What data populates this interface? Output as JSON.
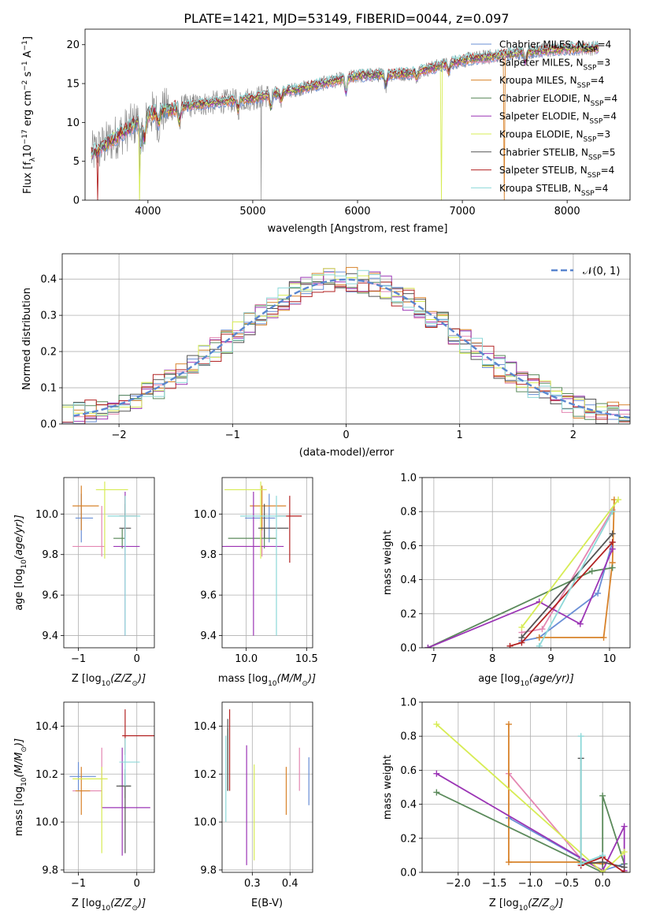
{
  "figure": {
    "title": "PLATE=1421, MJD=53149, FIBERID=0044, z=0.097"
  },
  "chart_data": [
    {
      "id": "spectrum",
      "type": "line",
      "xlabel": "wavelength [Angstrom, rest frame]",
      "ylabel_parts": [
        "Flux [f",
        "λ",
        "10",
        "−17",
        " erg cm",
        "−2",
        " s",
        "−1",
        " A",
        "−1",
        "]"
      ],
      "xlim": [
        3400,
        8600
      ],
      "ylim": [
        0,
        22
      ],
      "xticks": [
        4000,
        5000,
        6000,
        7000,
        8000
      ],
      "yticks": [
        0,
        5,
        10,
        15,
        20
      ],
      "grid": false,
      "legend_position": "top-right",
      "continuum": {
        "x": [
          3450,
          3700,
          4000,
          4300,
          4600,
          5000,
          5500,
          6000,
          6500,
          7000,
          7500,
          8000,
          8300
        ],
        "y": [
          5.8,
          8.2,
          11.0,
          12.0,
          12.5,
          13.1,
          14.5,
          16.0,
          16.3,
          18.0,
          18.9,
          19.5,
          19.6
        ]
      },
      "absorption_features": [
        {
          "x": 3933,
          "depth": 3.5
        },
        {
          "x": 3968,
          "depth": 3.0
        },
        {
          "x": 4101,
          "depth": 1.5
        },
        {
          "x": 4300,
          "depth": 2.0
        },
        {
          "x": 4861,
          "depth": 1.2
        },
        {
          "x": 5175,
          "depth": 1.8
        },
        {
          "x": 5270,
          "depth": 1.0
        },
        {
          "x": 5890,
          "depth": 1.8
        },
        {
          "x": 6270,
          "depth": 1.5
        },
        {
          "x": 6563,
          "depth": 0.6
        },
        {
          "x": 6870,
          "depth": 1.0
        },
        {
          "x": 7600,
          "depth": 1.2
        }
      ],
      "series": [
        {
          "name_pre": "Chabrier MILES, N",
          "name_sub": "SSP",
          "name_post": "=4",
          "color": "#6a8fd6"
        },
        {
          "name_pre": "Salpeter MILES, N",
          "name_sub": "SSP",
          "name_post": "=3",
          "color": "#e487b2"
        },
        {
          "name_pre": "Kroupa MILES, N",
          "name_sub": "SSP",
          "name_post": "=4",
          "color": "#d8822a"
        },
        {
          "name_pre": "Chabrier ELODIE, N",
          "name_sub": "SSP",
          "name_post": "=4",
          "color": "#5b8a5b"
        },
        {
          "name_pre": "Salpeter ELODIE, N",
          "name_sub": "SSP",
          "name_post": "=4",
          "color": "#9b35b5"
        },
        {
          "name_pre": "Kroupa ELODIE, N",
          "name_sub": "SSP",
          "name_post": "=3",
          "color": "#d7ec55"
        },
        {
          "name_pre": "Chabrier STELIB, N",
          "name_sub": "SSP",
          "name_post": "=5",
          "color": "#555555"
        },
        {
          "name_pre": "Salpeter STELIB, N",
          "name_sub": "SSP",
          "name_post": "=4",
          "color": "#b22222"
        },
        {
          "name_pre": "Kroupa STELIB, N",
          "name_sub": "SSP",
          "name_post": "=4",
          "color": "#8dd8d8"
        }
      ]
    },
    {
      "id": "residuals",
      "type": "histogram",
      "xlabel": "(data-model)/error",
      "ylabel": "Normed distribution",
      "xlim": [
        -2.5,
        2.5
      ],
      "ylim": [
        0,
        0.47
      ],
      "xticks": [
        -2,
        -1,
        0,
        1,
        2
      ],
      "yticks": [
        0.0,
        0.1,
        0.2,
        0.3,
        0.4
      ],
      "grid": true,
      "legend_position": "top-right",
      "bin_width": 0.1,
      "reference_curve": {
        "name": "𝒩(0, 1)",
        "color": "#5a86cf",
        "dashed": true,
        "mean": 0,
        "sigma": 1
      }
    },
    {
      "id": "Z-age",
      "type": "scatter-errorbar",
      "xlabel_parts": [
        "Z [log",
        "10",
        "(Z/Z",
        "⊙",
        ")]"
      ],
      "ylabel_parts": [
        "age  [log",
        "10",
        "(age/yr)]"
      ],
      "xlim": [
        -1.25,
        0.3
      ],
      "ylim": [
        9.34,
        10.18
      ],
      "xticks": [
        -1,
        0
      ],
      "yticks": [
        9.4,
        9.6,
        9.8,
        10.0
      ],
      "grid": true,
      "points": [
        {
          "x": -0.95,
          "y": 9.98,
          "xerr": [
            0.1,
            0.2
          ],
          "yerr": [
            0.12,
            0.12
          ],
          "s": 0
        },
        {
          "x": -0.6,
          "y": 9.84,
          "xerr": [
            0.5,
            0.05
          ],
          "yerr": [
            0.05,
            0.2
          ],
          "s": 1
        },
        {
          "x": -0.95,
          "y": 10.04,
          "xerr": [
            0.15,
            0.3
          ],
          "yerr": [
            0.12,
            0.1
          ],
          "s": 2
        },
        {
          "x": -0.25,
          "y": 9.88,
          "xerr": [
            0.15,
            0.05
          ],
          "yerr": [
            0.05,
            0.05
          ],
          "s": 3
        },
        {
          "x": -0.2,
          "y": 9.84,
          "xerr": [
            0.2,
            0.25
          ],
          "yerr": [
            0.44,
            0.27
          ],
          "s": 4
        },
        {
          "x": -0.55,
          "y": 10.12,
          "xerr": [
            0.15,
            0.4
          ],
          "yerr": [
            0.34,
            0.04
          ],
          "s": 5
        },
        {
          "x": -0.2,
          "y": 9.93,
          "xerr": [
            0.1,
            0.1
          ],
          "yerr": [
            0.05,
            0.12
          ],
          "s": 6
        },
        {
          "x": -0.2,
          "y": 9.99,
          "xerr": [
            0.1,
            0.2
          ],
          "yerr": [
            0.1,
            0.1
          ],
          "s": 7
        },
        {
          "x": -0.2,
          "y": 9.99,
          "xerr": [
            0.3,
            0.26
          ],
          "yerr": [
            0.59,
            0.1
          ],
          "s": 8
        }
      ]
    },
    {
      "id": "mass-age",
      "type": "scatter-errorbar",
      "xlabel_parts": [
        "mass [log",
        "10",
        "(M/M",
        "⊙",
        ")]"
      ],
      "ylabel": "",
      "xlim": [
        9.8,
        10.55
      ],
      "ylim": [
        9.34,
        10.18
      ],
      "xticks": [
        10.0,
        10.5
      ],
      "yticks": [
        9.4,
        9.6,
        9.8,
        10.0
      ],
      "grid": true,
      "points": [
        {
          "x": 10.19,
          "y": 9.98,
          "xerr": [
            0.2,
            0.05
          ],
          "yerr": [
            0.12,
            0.12
          ],
          "s": 0
        },
        {
          "x": 10.13,
          "y": 9.84,
          "xerr": [
            0.3,
            0.04
          ],
          "yerr": [
            0.05,
            0.2
          ],
          "s": 1
        },
        {
          "x": 10.13,
          "y": 10.04,
          "xerr": [
            0.1,
            0.2
          ],
          "yerr": [
            0.12,
            0.1
          ],
          "s": 2
        },
        {
          "x": 10.15,
          "y": 9.88,
          "xerr": [
            0.3,
            0.1
          ],
          "yerr": [
            0.05,
            0.05
          ],
          "s": 3
        },
        {
          "x": 10.06,
          "y": 9.84,
          "xerr": [
            0.3,
            0.25
          ],
          "yerr": [
            0.44,
            0.27
          ],
          "s": 4
        },
        {
          "x": 10.12,
          "y": 10.12,
          "xerr": [
            0.3,
            0.05
          ],
          "yerr": [
            0.34,
            0.04
          ],
          "s": 5
        },
        {
          "x": 10.15,
          "y": 9.93,
          "xerr": [
            0.05,
            0.2
          ],
          "yerr": [
            0.05,
            0.12
          ],
          "s": 6
        },
        {
          "x": 10.36,
          "y": 9.99,
          "xerr": [
            0.1,
            0.1
          ],
          "yerr": [
            0.23,
            0.1
          ],
          "s": 7
        },
        {
          "x": 10.25,
          "y": 9.99,
          "xerr": [
            0.3,
            0.08
          ],
          "yerr": [
            0.59,
            0.1
          ],
          "s": 8
        }
      ]
    },
    {
      "id": "age-weight",
      "type": "line",
      "xlabel_parts": [
        "age  [log",
        "10",
        "(age/yr)]"
      ],
      "ylabel": "mass weight",
      "xlim": [
        6.8,
        10.35
      ],
      "ylim": [
        0,
        1.0
      ],
      "xticks": [
        7,
        8,
        9,
        10
      ],
      "yticks": [
        0.0,
        0.2,
        0.4,
        0.6,
        0.8,
        1.0
      ],
      "grid": true,
      "series": [
        {
          "s": 0,
          "x": [
            8.5,
            8.8,
            9.8,
            10.05
          ],
          "y": [
            0.04,
            0.06,
            0.32,
            0.62
          ]
        },
        {
          "s": 1,
          "x": [
            8.5,
            8.85,
            10.05
          ],
          "y": [
            0.09,
            0.11,
            0.81
          ]
        },
        {
          "s": 2,
          "x": [
            8.8,
            9.9,
            10.05,
            10.08
          ],
          "y": [
            0.06,
            0.06,
            0.5,
            0.87
          ]
        },
        {
          "s": 3,
          "x": [
            6.9,
            9.7,
            10.05
          ],
          "y": [
            0.0,
            0.45,
            0.47
          ]
        },
        {
          "s": 4,
          "x": [
            6.9,
            8.8,
            9.5,
            10.05
          ],
          "y": [
            0.0,
            0.27,
            0.14,
            0.58
          ]
        },
        {
          "s": 5,
          "x": [
            8.5,
            10.15
          ],
          "y": [
            0.12,
            0.87
          ]
        },
        {
          "s": 6,
          "x": [
            8.5,
            10.05
          ],
          "y": [
            0.06,
            0.67
          ]
        },
        {
          "s": 7,
          "x": [
            8.3,
            8.5,
            10.05
          ],
          "y": [
            0.01,
            0.03,
            0.62
          ]
        },
        {
          "s": 8,
          "x": [
            8.8,
            10.05
          ],
          "y": [
            0.01,
            0.8
          ]
        }
      ]
    },
    {
      "id": "Z-mass",
      "type": "scatter-errorbar",
      "xlabel_parts": [
        "Z [log",
        "10",
        "(Z/Z",
        "⊙",
        ")]"
      ],
      "ylabel_parts": [
        "mass [log",
        "10",
        "(M/M",
        "⊙",
        ")]"
      ],
      "xlim": [
        -1.25,
        0.3
      ],
      "ylim": [
        9.79,
        10.5
      ],
      "xticks": [
        -1,
        0
      ],
      "yticks": [
        9.8,
        10.0,
        10.2,
        10.4
      ],
      "grid": true,
      "points": [
        {
          "x": -1.0,
          "y": 10.19,
          "xerr": [
            0.15,
            0.3
          ],
          "yerr": [
            0.06,
            0.06
          ],
          "s": 0
        },
        {
          "x": -0.6,
          "y": 10.13,
          "xerr": [
            0.5,
            0.0
          ],
          "yerr": [
            0.07,
            0.18
          ],
          "s": 1
        },
        {
          "x": -0.95,
          "y": 10.13,
          "xerr": [
            0.1,
            0.15
          ],
          "yerr": [
            0.1,
            0.1
          ],
          "s": 2
        },
        {
          "x": -0.2,
          "y": 10.15,
          "xerr": [
            0.1,
            0.1
          ],
          "yerr": [
            0.05,
            0.05
          ],
          "s": 3
        },
        {
          "x": -0.25,
          "y": 10.06,
          "xerr": [
            0.35,
            0.48
          ],
          "yerr": [
            0.2,
            0.25
          ],
          "s": 4
        },
        {
          "x": -0.6,
          "y": 10.18,
          "xerr": [
            0.5,
            0.1
          ],
          "yerr": [
            0.31,
            0.05
          ],
          "s": 5
        },
        {
          "x": -0.2,
          "y": 10.15,
          "xerr": [
            0.15,
            0.1
          ],
          "yerr": [
            0.28,
            0.07
          ],
          "s": 6
        },
        {
          "x": -0.2,
          "y": 10.36,
          "xerr": [
            0.05,
            0.52
          ],
          "yerr": [
            0.08,
            0.11
          ],
          "s": 7
        },
        {
          "x": -0.2,
          "y": 10.25,
          "xerr": [
            0.1,
            0.25
          ],
          "yerr": [
            0.1,
            0.1
          ],
          "s": 8
        }
      ]
    },
    {
      "id": "ebv-mass",
      "type": "scatter-errorbar",
      "xlabel": "E(B-V)",
      "ylabel": "",
      "xlim": [
        0.22,
        0.46
      ],
      "ylim": [
        9.79,
        10.5
      ],
      "xticks": [
        0.3,
        0.4
      ],
      "yticks": [
        9.8,
        10.0,
        10.2,
        10.4
      ],
      "grid": true,
      "points": [
        {
          "x": 0.45,
          "y": 10.17,
          "xerr": [
            0,
            0
          ],
          "yerr": [
            0.1,
            0.1
          ],
          "s": 0
        },
        {
          "x": 0.425,
          "y": 10.22,
          "xerr": [
            0,
            0
          ],
          "yerr": [
            0.09,
            0.09
          ],
          "s": 1
        },
        {
          "x": 0.39,
          "y": 10.13,
          "xerr": [
            0,
            0
          ],
          "yerr": [
            0.1,
            0.1
          ],
          "s": 2
        },
        {
          "x": 0.235,
          "y": 10.26,
          "xerr": [
            0,
            0
          ],
          "yerr": [
            0.13,
            0.13
          ],
          "s": 3
        },
        {
          "x": 0.285,
          "y": 10.07,
          "xerr": [
            0,
            0
          ],
          "yerr": [
            0.25,
            0.25
          ],
          "s": 4
        },
        {
          "x": 0.305,
          "y": 10.04,
          "xerr": [
            0,
            0
          ],
          "yerr": [
            0.2,
            0.2
          ],
          "s": 5
        },
        {
          "x": 0.235,
          "y": 10.28,
          "xerr": [
            0,
            0
          ],
          "yerr": [
            0.15,
            0.15
          ],
          "s": 6
        },
        {
          "x": 0.24,
          "y": 10.3,
          "xerr": [
            0,
            0
          ],
          "yerr": [
            0.17,
            0.17
          ],
          "s": 7
        },
        {
          "x": 0.23,
          "y": 10.18,
          "xerr": [
            0,
            0
          ],
          "yerr": [
            0.18,
            0.18
          ],
          "s": 8
        }
      ]
    },
    {
      "id": "Z-weight",
      "type": "line",
      "xlabel_parts": [
        "Z [log",
        "10",
        "(Z/Z",
        "⊙",
        ")]"
      ],
      "ylabel": "mass weight",
      "xlim": [
        -2.5,
        0.38
      ],
      "ylim": [
        0,
        1.0
      ],
      "xticks": [
        -2.0,
        -1.5,
        -1.0,
        -0.5,
        0.0
      ],
      "yticks": [
        0.0,
        0.2,
        0.4,
        0.6,
        0.8,
        1.0
      ],
      "grid": true,
      "series": [
        {
          "s": 0,
          "x": [
            -1.3,
            0.0,
            0.3
          ],
          "y": [
            0.32,
            0.01,
            0.05
          ]
        },
        {
          "s": 1,
          "x": [
            -1.3,
            -0.3,
            0.0
          ],
          "y": [
            0.58,
            0.08,
            0.01
          ]
        },
        {
          "s": 2,
          "x": [
            -1.3,
            -1.3,
            -0.3,
            0.0
          ],
          "y": [
            0.87,
            0.06,
            0.06,
            0.05
          ]
        },
        {
          "s": 3,
          "x": [
            -2.3,
            0.0,
            0.0,
            0.3
          ],
          "y": [
            0.47,
            0.0,
            0.45,
            0.05
          ]
        },
        {
          "s": 4,
          "x": [
            -2.3,
            0.0,
            0.3,
            0.3
          ],
          "y": [
            0.58,
            0.01,
            0.27,
            0.01
          ]
        },
        {
          "s": 5,
          "x": [
            -2.3,
            0.0,
            0.3
          ],
          "y": [
            0.87,
            0.0,
            0.12
          ]
        },
        {
          "s": 6,
          "x": [
            -0.3,
            -0.3,
            0.0,
            0.3
          ],
          "y": [
            0.67,
            0.05,
            0.06,
            0.03
          ]
        },
        {
          "s": 7,
          "x": [
            -0.3,
            0.0,
            0.3
          ],
          "y": [
            0.04,
            0.09,
            0.0
          ]
        },
        {
          "s": 8,
          "x": [
            -0.3,
            -0.3,
            0.0
          ],
          "y": [
            0.8,
            0.05,
            0.1
          ]
        }
      ]
    }
  ]
}
